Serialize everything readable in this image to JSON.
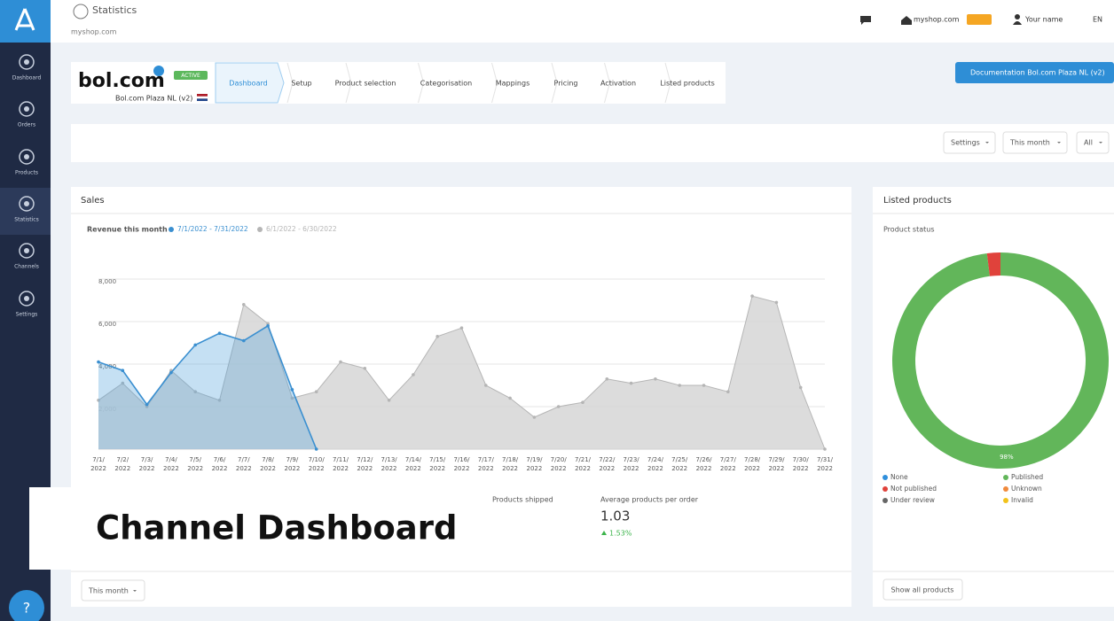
{
  "sidebar": {
    "items": [
      "Dashboard",
      "Orders",
      "Products",
      "Statistics",
      "Channels",
      "Settings"
    ],
    "help": "?"
  },
  "header": {
    "title": "Statistics",
    "subtitle": "myshop.com",
    "shop": "myshop.com",
    "user": "Your name",
    "language": "EN"
  },
  "channel": {
    "logo": "bol.com",
    "status": "ACTIVE",
    "name": "Bol.com Plaza NL (v2)",
    "tabs": [
      "Dashboard",
      "Setup",
      "Product selection",
      "Categorisation",
      "Mappings",
      "Pricing",
      "Activation",
      "Listed products"
    ],
    "documentation": "Documentation Bol.com Plaza NL (v2)"
  },
  "filters": [
    "Settings",
    "This month",
    "All"
  ],
  "sales": {
    "title": "Sales",
    "stats": [
      {
        "label": "Products shipped"
      },
      {
        "label": "Average products per order",
        "value": "1.03",
        "change": "1.53%"
      }
    ],
    "period": "This month"
  },
  "listed": {
    "title": "Listed products",
    "button": "Show all products"
  },
  "overlay": "Channel Dashboard",
  "chart_data": [
    {
      "type": "area",
      "subtitle": "Revenue this month",
      "categories": [
        "7/1/2022",
        "7/2/2022",
        "7/3/2022",
        "7/4/2022",
        "7/5/2022",
        "7/6/2022",
        "7/7/2022",
        "7/8/2022",
        "7/9/2022",
        "7/10/2022",
        "7/11/2022",
        "7/12/2022",
        "7/13/2022",
        "7/14/2022",
        "7/15/2022",
        "7/16/2022",
        "7/17/2022",
        "7/18/2022",
        "7/19/2022",
        "7/20/2022",
        "7/21/2022",
        "7/22/2022",
        "7/23/2022",
        "7/24/2022",
        "7/25/2022",
        "7/26/2022",
        "7/27/2022",
        "7/28/2022",
        "7/29/2022",
        "7/30/2022",
        "7/31/2022"
      ],
      "series": [
        {
          "name": "6/1/2022 - 6/30/2022",
          "color": "#b5b5b5",
          "values": [
            2300,
            3100,
            2000,
            3700,
            2700,
            2300,
            6800,
            5900,
            2400,
            2700,
            4100,
            3800,
            2300,
            3500,
            5300,
            5700,
            3000,
            2400,
            1500,
            2000,
            2200,
            3300,
            3100,
            3300,
            3000,
            3000,
            2700,
            7200,
            6900,
            2900,
            0
          ]
        },
        {
          "name": "7/1/2022 - 7/31/2022",
          "color": "#3a8fd0",
          "values": [
            4100,
            3700,
            2100,
            3600,
            4900,
            5450,
            5100,
            5800,
            2800,
            0,
            null,
            null,
            null,
            null,
            null,
            null,
            null,
            null,
            null,
            null,
            null,
            null,
            null,
            null,
            null,
            null,
            null,
            null,
            null,
            null,
            null
          ]
        }
      ],
      "ylim": [
        0,
        8000
      ],
      "yticks": [
        {
          "value": 2000,
          "label": "2,000"
        },
        {
          "value": 4000,
          "label": "4,000"
        },
        {
          "value": 6000,
          "label": "6,000"
        },
        {
          "value": 8000,
          "label": "8,000"
        }
      ],
      "grid": true
    },
    {
      "type": "pie",
      "title": "Product status",
      "categories": [
        "None",
        "Published",
        "Not published",
        "Unknown",
        "Under review",
        "Invalid"
      ],
      "values": [
        0,
        98,
        2,
        0,
        0,
        0
      ],
      "value_labels": [
        null,
        "98%",
        null,
        null,
        null,
        null
      ],
      "colors": [
        "#2f8fdc",
        "#62b65a",
        "#e0423b",
        "#f08a3c",
        "#666666",
        "#f2c21b"
      ]
    }
  ]
}
